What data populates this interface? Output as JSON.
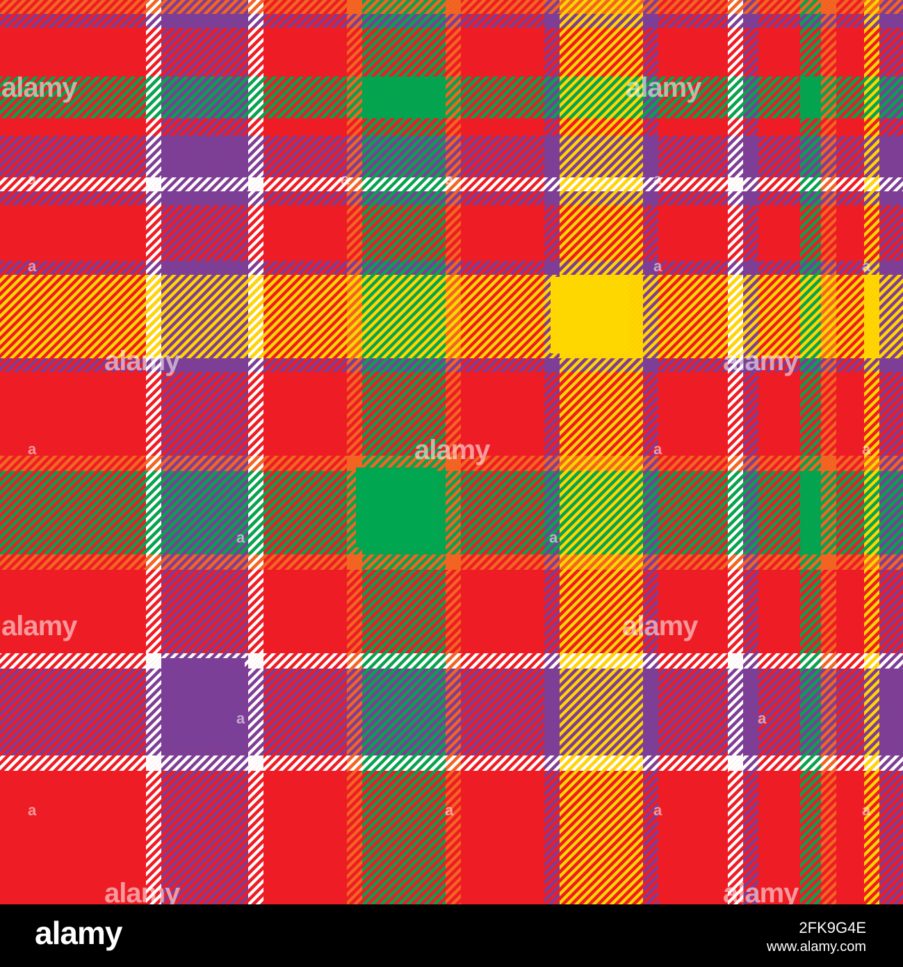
{
  "image": {
    "description_colors": {
      "red": "#ee1c24",
      "purple": "#7b3f98",
      "yellow": "#ffd700",
      "green": "#00a650",
      "white": "#ffffff",
      "orange": "#f26522"
    }
  },
  "watermark": {
    "text": "alamy",
    "small_text": "a"
  },
  "footer": {
    "logo": "alamy",
    "image_id": "2FK9G4E",
    "site": "www.alamy.com"
  }
}
